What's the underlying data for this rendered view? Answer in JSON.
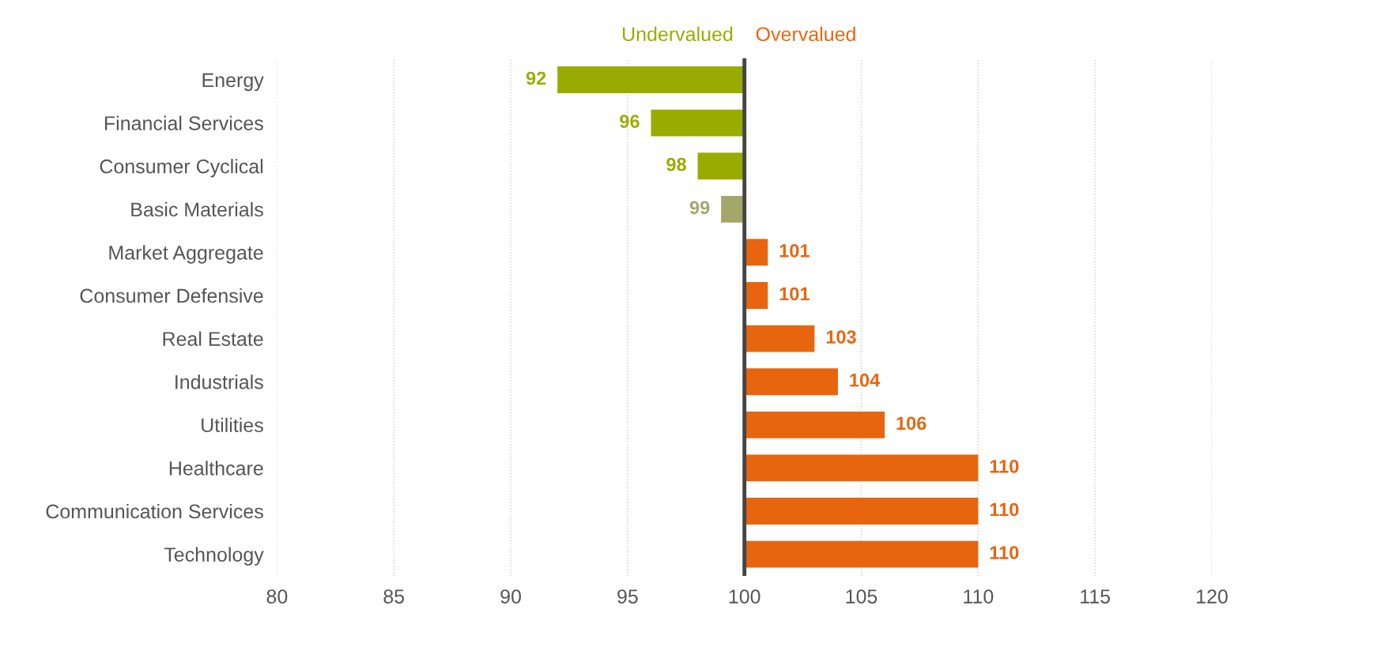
{
  "chart_data": {
    "type": "bar",
    "orientation": "horizontal",
    "categories": [
      "Energy",
      "Financial Services",
      "Consumer Cyclical",
      "Basic Materials",
      "Market Aggregate",
      "Consumer Defensive",
      "Real Estate",
      "Industrials",
      "Utilities",
      "Healthcare",
      "Communication Services",
      "Technology"
    ],
    "base": [
      100,
      100,
      100,
      100,
      100,
      100,
      100,
      100,
      100,
      100,
      100,
      100
    ],
    "values": [
      -8,
      -4,
      -2,
      -1,
      1,
      1,
      3,
      4,
      6,
      10,
      10,
      10
    ],
    "value_labels": [
      "92",
      "96",
      "98",
      "99",
      "101",
      "101",
      "103",
      "104",
      "106",
      "110",
      "110",
      "110"
    ],
    "colors": [
      "#9aab00",
      "#9aab00",
      "#9aab00",
      "#a3a86a",
      "#e8650f",
      "#e8650f",
      "#e8650f",
      "#e8650f",
      "#e8650f",
      "#e8650f",
      "#e8650f",
      "#e8650f"
    ],
    "xlim": [
      80,
      120
    ],
    "xticks": [
      80,
      85,
      90,
      95,
      100,
      105,
      110,
      115,
      120
    ],
    "grid": "x",
    "ref_lines": [
      {
        "axis": "x",
        "value": 100,
        "color": "#444444"
      }
    ],
    "annotations": [
      "Undervalued",
      "Overvalued"
    ]
  }
}
